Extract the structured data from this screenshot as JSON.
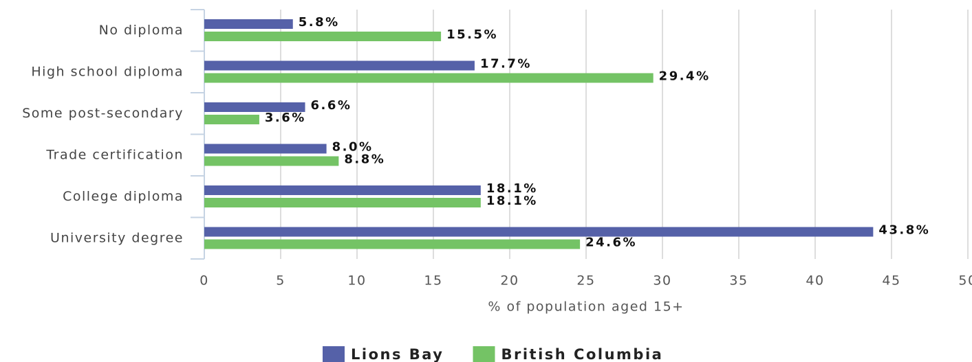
{
  "chart_data": {
    "type": "bar",
    "orientation": "horizontal",
    "categories": [
      "No diploma",
      "High school diploma",
      "Some post-secondary",
      "Trade certification",
      "College diploma",
      "University degree"
    ],
    "series": [
      {
        "name": "Lions Bay",
        "color": "#5561a8",
        "values": [
          5.8,
          17.7,
          6.6,
          8.0,
          18.1,
          43.8
        ],
        "value_labels": [
          "5.8%",
          "17.7%",
          "6.6%",
          "8.0%",
          "18.1%",
          "43.8%"
        ]
      },
      {
        "name": "British Columbia",
        "color": "#74c365",
        "values": [
          15.5,
          29.4,
          3.6,
          8.8,
          18.1,
          24.6
        ],
        "value_labels": [
          "15.5%",
          "29.4%",
          "3.6%",
          "8.8%",
          "18.1%",
          "24.6%"
        ]
      }
    ],
    "x_label": "% of population aged 15+",
    "xlim": [
      0,
      50
    ],
    "xticks": [
      0,
      5,
      10,
      15,
      20,
      25,
      30,
      35,
      40,
      45,
      50
    ],
    "grid": true,
    "legend": "bottom"
  }
}
